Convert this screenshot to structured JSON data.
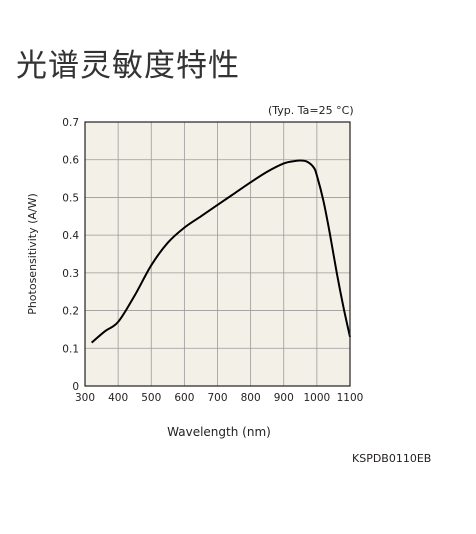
{
  "page": {
    "title": "光谱灵敏度特性",
    "note": "(Typ. Ta=25 °C)",
    "code": "KSPDB0110EB"
  },
  "chart_data": {
    "type": "line",
    "xlabel": "Wavelength (nm)",
    "ylabel": "Photosensitivity (A/W)",
    "xlim": [
      300,
      1100
    ],
    "ylim": [
      0,
      0.7
    ],
    "xticks": [
      300,
      400,
      500,
      600,
      700,
      800,
      900,
      1000,
      1100
    ],
    "xtick_labels": [
      "300",
      "400",
      "500",
      "600",
      "700",
      "800",
      "900",
      "1000",
      "1100"
    ],
    "yticks": [
      0,
      0.1,
      0.2,
      0.3,
      0.4,
      0.5,
      0.6,
      0.7
    ],
    "ytick_labels": [
      "0",
      "0.1",
      "0.2",
      "0.3",
      "0.4",
      "0.5",
      "0.6",
      "0.7"
    ],
    "grid": true,
    "colors": {
      "plot_bg": "#f3f1e7",
      "grid": "#9a9a9a",
      "line": "#000000"
    },
    "series": [
      {
        "x": [
          320,
          360,
          400,
          450,
          500,
          550,
          600,
          650,
          700,
          750,
          800,
          850,
          900,
          930,
          950,
          970,
          990,
          1000,
          1020,
          1040,
          1060,
          1080,
          1100
        ],
        "y": [
          0.115,
          0.145,
          0.17,
          0.24,
          0.32,
          0.38,
          0.42,
          0.45,
          0.48,
          0.51,
          0.54,
          0.568,
          0.59,
          0.596,
          0.598,
          0.595,
          0.58,
          0.558,
          0.49,
          0.4,
          0.3,
          0.21,
          0.13
        ]
      }
    ]
  }
}
